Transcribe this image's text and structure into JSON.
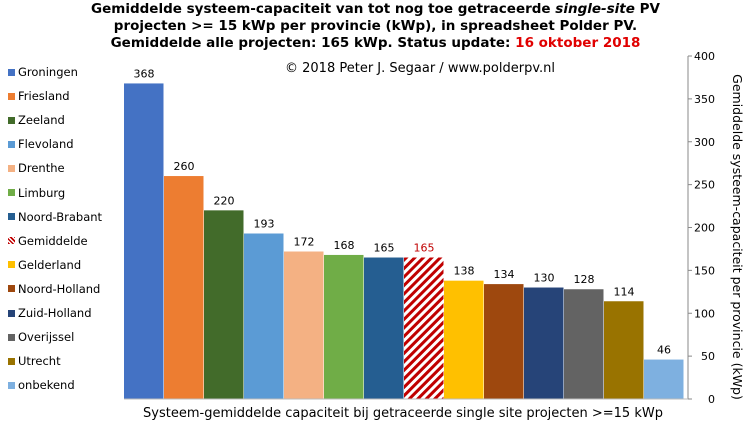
{
  "title": {
    "line1_pre": "Gemiddelde systeem-capaciteit van tot nog toe getraceerde ",
    "line1_em": "single-site",
    "line1_post": " PV",
    "line2": "projecten >= 15 kWp per provincie (kWp), in spreadsheet Polder PV.",
    "line3_pre": "Gemiddelde alle projecten: 165 kWp. Status update: ",
    "line3_date": "16 oktober 2018"
  },
  "copyright": "© 2018 Peter J. Segaar / www.polderpv.nl",
  "chart_data": {
    "type": "bar",
    "categories": [
      "Groningen",
      "Friesland",
      "Zeeland",
      "Flevoland",
      "Drenthe",
      "Limburg",
      "Noord-Brabant",
      "Gemiddelde",
      "Gelderland",
      "Noord-Holland",
      "Zuid-Holland",
      "Overijssel",
      "Utrecht",
      "onbekend"
    ],
    "values": [
      368,
      260,
      220,
      193,
      172,
      168,
      165,
      165,
      138,
      134,
      130,
      128,
      114,
      46
    ],
    "colors": [
      "#4472c4",
      "#ed7d31",
      "#426b2a",
      "#5b9bd5",
      "#f4b183",
      "#70ad47",
      "#255e91",
      "#c00000",
      "#ffc000",
      "#9e480e",
      "#264478",
      "#636363",
      "#997300",
      "#7eb0e0"
    ],
    "hatched": "Gemiddelde",
    "highlight_label_color": "#c00000",
    "xlabel": "Systeem-gemiddelde capaciteit bij getraceerde single site projecten >=15 kWp",
    "ylabel": "Gemiddelde systeem-capaciteit per provincie (kWp)",
    "ylim": [
      0,
      400
    ],
    "yticks": [
      0,
      50,
      100,
      150,
      200,
      250,
      300,
      350,
      400
    ],
    "y_axis_side": "right",
    "grid": false,
    "legend_position": "left"
  }
}
